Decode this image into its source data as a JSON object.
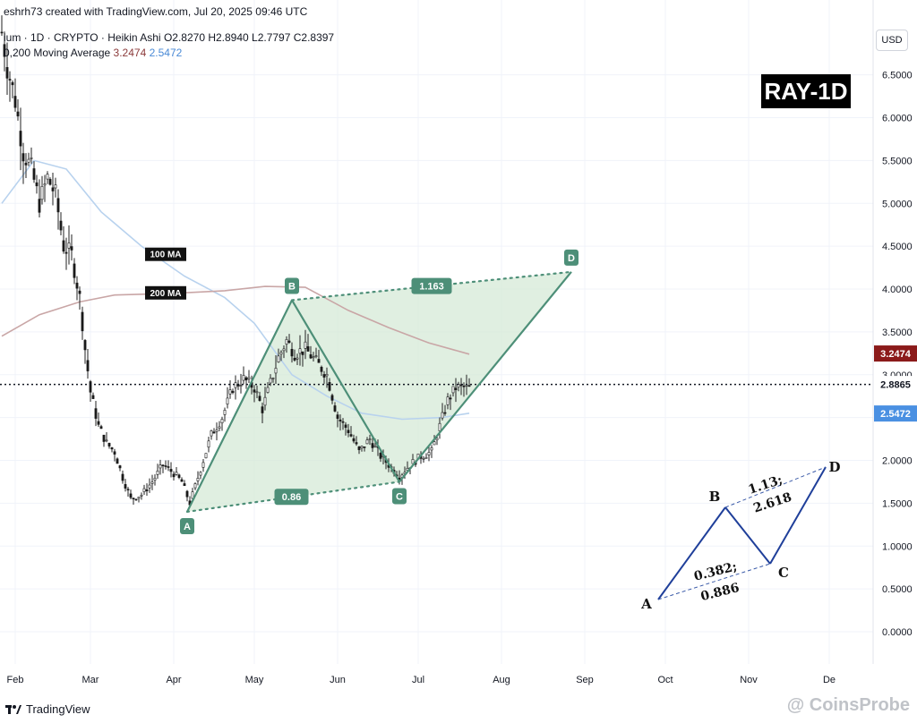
{
  "header": {
    "top": "eshrh73 created with TradingView.com, Jul 20, 2025 09:46 UTC",
    "symbol": "ium · 1D · CRYPTO · Heikin Ashi",
    "ohlc": "O2.8270  H2.8940  L2.7797  C2.8397",
    "ma_label": "0,200 Moving Average",
    "ma_red": "3.2474",
    "ma_blue": "2.5472",
    "currency": "USD"
  },
  "footer": {
    "brand": "TradingView",
    "watermark": "@ CoinsProbe"
  },
  "colors": {
    "pattern": "#4d8f78",
    "fill": "#d5ead7",
    "ma100": "#b8d2ee",
    "ma200": "#c9a6a6",
    "bull": "#2b2b2b",
    "bear": "#2b2b2b",
    "badge_red": "#8b1a1a",
    "badge_blue": "#4a90e2"
  },
  "chart_data": {
    "type": "candlestick",
    "title": "RAY-1D",
    "ylabel": "",
    "ylim": [
      -0.25,
      7.1
    ],
    "y_ticks": [
      "0.0000",
      "0.5000",
      "1.0000",
      "1.5000",
      "2.0000",
      "2.5000",
      "3.0000",
      "3.5000",
      "4.0000",
      "4.5000",
      "5.0000",
      "5.5000",
      "6.0000",
      "6.5000"
    ],
    "x_ticks": [
      {
        "label": "Feb",
        "date": "2025-02-01"
      },
      {
        "label": "Mar",
        "date": "2025-03-01"
      },
      {
        "label": "Apr",
        "date": "2025-04-01"
      },
      {
        "label": "May",
        "date": "2025-05-01"
      },
      {
        "label": "Jun",
        "date": "2025-06-01"
      },
      {
        "label": "Jul",
        "date": "2025-07-01"
      },
      {
        "label": "Aug",
        "date": "2025-08-01"
      },
      {
        "label": "Sep",
        "date": "2025-09-01"
      },
      {
        "label": "Oct",
        "date": "2025-10-01"
      },
      {
        "label": "Nov",
        "date": "2025-11-01"
      },
      {
        "label": "De",
        "date": "2025-12-01"
      }
    ],
    "price_path": [
      [
        "2025-01-27",
        7.0
      ],
      [
        "2025-01-29",
        6.6
      ],
      [
        "2025-02-01",
        6.2
      ],
      [
        "2025-02-04",
        5.6
      ],
      [
        "2025-02-07",
        5.4
      ],
      [
        "2025-02-10",
        5.0
      ],
      [
        "2025-02-13",
        5.3
      ],
      [
        "2025-02-16",
        5.1
      ],
      [
        "2025-02-19",
        4.5
      ],
      [
        "2025-02-22",
        4.4
      ],
      [
        "2025-02-25",
        3.9
      ],
      [
        "2025-02-27",
        3.3
      ],
      [
        "2025-03-01",
        2.8
      ],
      [
        "2025-03-04",
        2.4
      ],
      [
        "2025-03-07",
        2.2
      ],
      [
        "2025-03-10",
        2.1
      ],
      [
        "2025-03-13",
        1.8
      ],
      [
        "2025-03-16",
        1.55
      ],
      [
        "2025-03-20",
        1.6
      ],
      [
        "2025-03-24",
        1.75
      ],
      [
        "2025-03-28",
        1.95
      ],
      [
        "2025-04-01",
        1.85
      ],
      [
        "2025-04-04",
        1.75
      ],
      [
        "2025-04-07",
        1.5
      ],
      [
        "2025-04-11",
        1.9
      ],
      [
        "2025-04-15",
        2.3
      ],
      [
        "2025-04-19",
        2.5
      ],
      [
        "2025-04-23",
        2.85
      ],
      [
        "2025-04-27",
        2.95
      ],
      [
        "2025-05-01",
        2.85
      ],
      [
        "2025-05-04",
        2.6
      ],
      [
        "2025-05-07",
        2.9
      ],
      [
        "2025-05-10",
        3.2
      ],
      [
        "2025-05-13",
        3.4
      ],
      [
        "2025-05-16",
        3.25
      ],
      [
        "2025-05-20",
        3.3
      ],
      [
        "2025-05-24",
        3.15
      ],
      [
        "2025-05-28",
        3.0
      ],
      [
        "2025-06-01",
        2.5
      ],
      [
        "2025-06-05",
        2.35
      ],
      [
        "2025-06-09",
        2.1
      ],
      [
        "2025-06-13",
        2.25
      ],
      [
        "2025-06-17",
        2.05
      ],
      [
        "2025-06-20",
        1.95
      ],
      [
        "2025-06-24",
        1.82
      ],
      [
        "2025-06-28",
        1.95
      ],
      [
        "2025-07-02",
        2.05
      ],
      [
        "2025-07-06",
        2.1
      ],
      [
        "2025-07-09",
        2.4
      ],
      [
        "2025-07-12",
        2.7
      ],
      [
        "2025-07-15",
        2.85
      ],
      [
        "2025-07-18",
        2.85
      ],
      [
        "2025-07-20",
        2.84
      ]
    ],
    "series": [
      {
        "name": "100 MA",
        "points": [
          [
            "2025-01-27",
            5.0
          ],
          [
            "2025-02-08",
            5.5
          ],
          [
            "2025-02-20",
            5.4
          ],
          [
            "2025-03-05",
            4.9
          ],
          [
            "2025-03-20",
            4.5
          ],
          [
            "2025-04-05",
            4.15
          ],
          [
            "2025-04-20",
            3.9
          ],
          [
            "2025-05-01",
            3.6
          ],
          [
            "2025-05-15",
            3.0
          ],
          [
            "2025-05-28",
            2.75
          ],
          [
            "2025-06-10",
            2.55
          ],
          [
            "2025-06-25",
            2.48
          ],
          [
            "2025-07-10",
            2.5
          ],
          [
            "2025-07-20",
            2.55
          ]
        ]
      },
      {
        "name": "200 MA",
        "points": [
          [
            "2025-01-27",
            3.45
          ],
          [
            "2025-02-10",
            3.7
          ],
          [
            "2025-02-25",
            3.85
          ],
          [
            "2025-03-10",
            3.93
          ],
          [
            "2025-04-01",
            3.95
          ],
          [
            "2025-04-20",
            3.98
          ],
          [
            "2025-05-05",
            4.03
          ],
          [
            "2025-05-20",
            4.02
          ],
          [
            "2025-06-05",
            3.75
          ],
          [
            "2025-06-20",
            3.55
          ],
          [
            "2025-07-05",
            3.37
          ],
          [
            "2025-07-20",
            3.24
          ]
        ]
      }
    ],
    "ma_labels": [
      "100 MA",
      "200 MA"
    ],
    "current_price": {
      "value": 2.8865,
      "label": "2.8865"
    },
    "price_badges": [
      {
        "value": 3.2474,
        "label": "3.2474",
        "color": "#8b1a1a"
      },
      {
        "value": 2.5472,
        "label": "2.5472",
        "color": "#4a90e2"
      }
    ],
    "harmonic_pattern": {
      "points": [
        {
          "label": "A",
          "date": "2025-04-06",
          "price": 1.4
        },
        {
          "label": "B",
          "date": "2025-05-15",
          "price": 3.87
        },
        {
          "label": "C",
          "date": "2025-06-24",
          "price": 1.75
        },
        {
          "label": "D",
          "date": "2025-08-27",
          "price": 4.2
        }
      ],
      "ratios": [
        {
          "label": "1.163",
          "between": [
            "B",
            "D"
          ]
        },
        {
          "label": "0.86",
          "between": [
            "A",
            "C"
          ]
        }
      ]
    },
    "inset_diagram": {
      "points": [
        "A",
        "B",
        "C",
        "D"
      ],
      "ratio_ac": [
        "0.382;",
        "0.886"
      ],
      "ratio_bd": [
        "1.13;",
        "2.618"
      ]
    }
  }
}
